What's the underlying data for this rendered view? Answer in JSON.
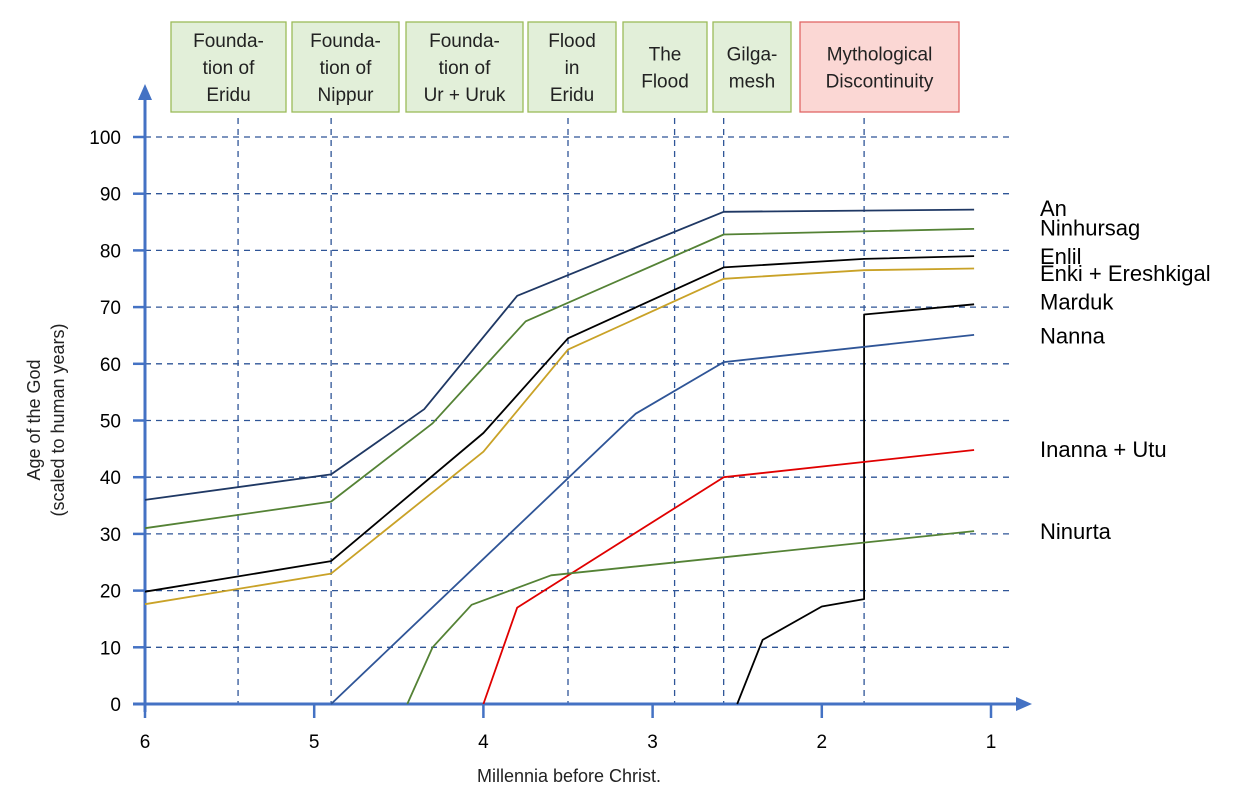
{
  "chart_data": {
    "type": "line",
    "xlabel": "Millennia before Christ.",
    "ylabel_lines": [
      "Age of the God",
      "(scaled to human years)"
    ],
    "xlim": [
      6,
      0.85
    ],
    "ylim": [
      0,
      100
    ],
    "x_ticks": [
      6,
      5,
      4,
      3,
      2,
      1
    ],
    "y_ticks": [
      0,
      10,
      20,
      30,
      40,
      50,
      60,
      70,
      80,
      90,
      100
    ],
    "grid": "dashed",
    "legend": "right",
    "vertical_gridlines": [
      5.45,
      4.9,
      3.5,
      2.87,
      2.58,
      1.75
    ],
    "events": [
      {
        "lines": [
          "Founda-",
          "tion of",
          "Eridu"
        ],
        "color": "#e2efd9",
        "border": "#9bbb59"
      },
      {
        "lines": [
          "Founda-",
          "tion of",
          "Nippur"
        ],
        "color": "#e2efd9",
        "border": "#9bbb59"
      },
      {
        "lines": [
          "Founda-",
          "tion of",
          "Ur + Uruk"
        ],
        "color": "#e2efd9",
        "border": "#9bbb59"
      },
      {
        "lines": [
          "Flood",
          "in",
          "Eridu"
        ],
        "color": "#e2efd9",
        "border": "#9bbb59"
      },
      {
        "lines": [
          "The",
          "Flood"
        ],
        "color": "#e2efd9",
        "border": "#9bbb59"
      },
      {
        "lines": [
          "Gilga-",
          "mesh"
        ],
        "color": "#e2efd9",
        "border": "#9bbb59"
      },
      {
        "lines": [
          "Mythological",
          "Discontinuity"
        ],
        "color": "#fbd7d4",
        "border": "#e06666"
      }
    ],
    "series": [
      {
        "name": "An",
        "color": "#1f3864",
        "points": [
          [
            6,
            36
          ],
          [
            4.9,
            40.5
          ],
          [
            4.35,
            52
          ],
          [
            3.8,
            72
          ],
          [
            2.58,
            86.8
          ],
          [
            1.1,
            87.2
          ]
        ]
      },
      {
        "name": "Ninhursag",
        "color": "#548235",
        "points": [
          [
            6,
            31
          ],
          [
            4.9,
            35.7
          ],
          [
            4.3,
            49.5
          ],
          [
            3.75,
            67.5
          ],
          [
            2.58,
            82.8
          ],
          [
            1.1,
            83.8
          ]
        ]
      },
      {
        "name": "Enlil",
        "color": "#000000",
        "points": [
          [
            6,
            19.8
          ],
          [
            4.9,
            25.2
          ],
          [
            4.0,
            47.8
          ],
          [
            3.5,
            64.5
          ],
          [
            2.58,
            77
          ],
          [
            1.75,
            78.5
          ],
          [
            1.1,
            79
          ]
        ]
      },
      {
        "name": "Enki + Ereshkigal",
        "color": "#c9a227",
        "points": [
          [
            6,
            17.6
          ],
          [
            4.9,
            23
          ],
          [
            4.0,
            44.5
          ],
          [
            3.5,
            62.5
          ],
          [
            2.58,
            75
          ],
          [
            1.75,
            76.5
          ],
          [
            1.1,
            76.8
          ]
        ]
      },
      {
        "name": "Marduk",
        "color": "#000000",
        "points": [
          [
            2.5,
            0
          ],
          [
            2.35,
            11.3
          ],
          [
            2.0,
            17.2
          ],
          [
            1.75,
            18.5
          ],
          [
            1.75,
            68.7
          ],
          [
            1.1,
            70.5
          ]
        ]
      },
      {
        "name": "Nanna",
        "color": "#2f5597",
        "points": [
          [
            4.9,
            0
          ],
          [
            3.1,
            51.2
          ],
          [
            2.58,
            60.3
          ],
          [
            1.1,
            65.1
          ]
        ]
      },
      {
        "name": "Inanna + Utu",
        "color": "#e00000",
        "points": [
          [
            4.0,
            0
          ],
          [
            3.8,
            17
          ],
          [
            2.58,
            40
          ],
          [
            1.1,
            44.8
          ]
        ]
      },
      {
        "name": "Ninurta",
        "color": "#548235",
        "points": [
          [
            4.45,
            0
          ],
          [
            4.3,
            10
          ],
          [
            4.07,
            17.5
          ],
          [
            3.6,
            22.7
          ],
          [
            1.1,
            30.5
          ]
        ]
      }
    ],
    "series_label_y": [
      87.5,
      84,
      79,
      76,
      71,
      65,
      45,
      30.5
    ]
  }
}
